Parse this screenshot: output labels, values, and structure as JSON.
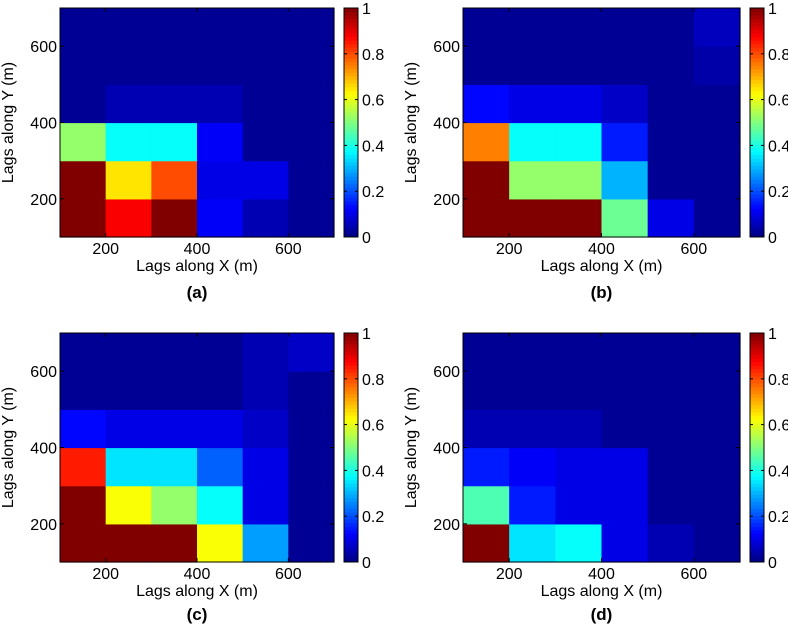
{
  "colorbar": {
    "ticks": [
      "0",
      "0.2",
      "0.4",
      "0.6",
      "0.8",
      "1"
    ],
    "tick_values": [
      0,
      0.2,
      0.4,
      0.6,
      0.8,
      1
    ],
    "range": [
      0,
      1
    ]
  },
  "chart_data": [
    {
      "type": "heatmap",
      "title": "(a)",
      "xlabel": "Lags along X (m)",
      "ylabel": "Lags along Y (m)",
      "xlim": [
        100,
        700
      ],
      "ylim": [
        100,
        700
      ],
      "x_ticks": [
        "200",
        "400",
        "600"
      ],
      "x_tick_values": [
        200,
        400,
        600
      ],
      "y_ticks": [
        "200",
        "400",
        "600"
      ],
      "y_tick_values": [
        200,
        400,
        600
      ],
      "cell_x": [
        150,
        250,
        350,
        450,
        550,
        650
      ],
      "cell_y": [
        150,
        250,
        350,
        450,
        550,
        650
      ],
      "values": [
        [
          1.0,
          0.88,
          1.0,
          0.12,
          0.05,
          0.02
        ],
        [
          1.0,
          0.65,
          0.8,
          0.1,
          0.1,
          0.02
        ],
        [
          0.52,
          0.38,
          0.38,
          0.12,
          0.02,
          0.02
        ],
        [
          0.02,
          0.05,
          0.05,
          0.05,
          0.02,
          0.02
        ],
        [
          0.02,
          0.02,
          0.02,
          0.02,
          0.02,
          0.02
        ],
        [
          0.02,
          0.02,
          0.02,
          0.02,
          0.02,
          0.02
        ]
      ]
    },
    {
      "type": "heatmap",
      "title": "(b)",
      "xlabel": "Lags along X (m)",
      "ylabel": "Lags along Y (m)",
      "xlim": [
        100,
        700
      ],
      "ylim": [
        100,
        700
      ],
      "x_ticks": [
        "200",
        "400",
        "600"
      ],
      "x_tick_values": [
        200,
        400,
        600
      ],
      "y_ticks": [
        "200",
        "400",
        "600"
      ],
      "y_tick_values": [
        200,
        400,
        600
      ],
      "cell_x": [
        150,
        250,
        350,
        450,
        550,
        650
      ],
      "cell_y": [
        150,
        250,
        350,
        450,
        550,
        650
      ],
      "values": [
        [
          1.0,
          1.0,
          1.0,
          0.48,
          0.1,
          0.02
        ],
        [
          1.0,
          0.52,
          0.52,
          0.3,
          0.02,
          0.02
        ],
        [
          0.75,
          0.38,
          0.38,
          0.15,
          0.02,
          0.02
        ],
        [
          0.13,
          0.1,
          0.1,
          0.07,
          0.02,
          0.02
        ],
        [
          0.02,
          0.02,
          0.02,
          0.02,
          0.02,
          0.04
        ],
        [
          0.02,
          0.02,
          0.02,
          0.02,
          0.02,
          0.06
        ]
      ]
    },
    {
      "type": "heatmap",
      "title": "(c)",
      "xlabel": "Lags along X (m)",
      "ylabel": "Lags along Y (m)",
      "xlim": [
        100,
        700
      ],
      "ylim": [
        100,
        700
      ],
      "x_ticks": [
        "200",
        "400",
        "600"
      ],
      "x_tick_values": [
        200,
        400,
        600
      ],
      "y_ticks": [
        "200",
        "400",
        "600"
      ],
      "y_tick_values": [
        200,
        400,
        600
      ],
      "cell_x": [
        150,
        250,
        350,
        450,
        550,
        650
      ],
      "cell_y": [
        150,
        250,
        350,
        450,
        550,
        650
      ],
      "values": [
        [
          1.0,
          1.0,
          1.0,
          0.62,
          0.28,
          0.02
        ],
        [
          1.0,
          0.62,
          0.52,
          0.38,
          0.1,
          0.02
        ],
        [
          0.85,
          0.35,
          0.35,
          0.22,
          0.1,
          0.02
        ],
        [
          0.13,
          0.1,
          0.1,
          0.1,
          0.07,
          0.02
        ],
        [
          0.02,
          0.02,
          0.02,
          0.02,
          0.05,
          0.02
        ],
        [
          0.02,
          0.02,
          0.02,
          0.02,
          0.05,
          0.07
        ]
      ]
    },
    {
      "type": "heatmap",
      "title": "(d)",
      "xlabel": "Lags along X (m)",
      "ylabel": "Lags along Y (m)",
      "xlim": [
        100,
        700
      ],
      "ylim": [
        100,
        700
      ],
      "x_ticks": [
        "200",
        "400",
        "600"
      ],
      "x_tick_values": [
        200,
        400,
        600
      ],
      "y_ticks": [
        "200",
        "400",
        "600"
      ],
      "y_tick_values": [
        200,
        400,
        600
      ],
      "cell_x": [
        150,
        250,
        350,
        450,
        550,
        650
      ],
      "cell_y": [
        150,
        250,
        350,
        450,
        550,
        650
      ],
      "values": [
        [
          1.0,
          0.35,
          0.38,
          0.1,
          0.05,
          0.02
        ],
        [
          0.45,
          0.15,
          0.1,
          0.1,
          0.02,
          0.02
        ],
        [
          0.15,
          0.12,
          0.1,
          0.1,
          0.02,
          0.02
        ],
        [
          0.05,
          0.05,
          0.05,
          0.02,
          0.02,
          0.02
        ],
        [
          0.02,
          0.02,
          0.02,
          0.02,
          0.02,
          0.02
        ],
        [
          0.02,
          0.02,
          0.02,
          0.02,
          0.02,
          0.02
        ]
      ]
    }
  ]
}
